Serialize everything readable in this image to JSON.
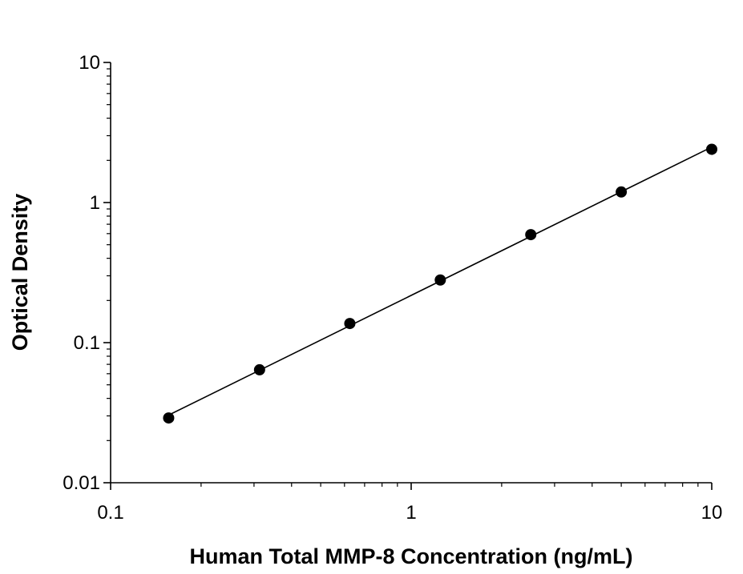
{
  "chart_data": {
    "type": "scatter",
    "title": "",
    "xlabel": "Human Total MMP-8 Concentration (ng/mL)",
    "ylabel": "Optical Density",
    "x_scale": "log",
    "y_scale": "log",
    "xlim": [
      0.1,
      10
    ],
    "ylim": [
      0.01,
      10
    ],
    "x_ticks": [
      "0.1",
      "1",
      "10"
    ],
    "y_ticks": [
      "0.01",
      "0.1",
      "1",
      "10"
    ],
    "grid": false,
    "legend": "none",
    "fit_line": true,
    "series": [
      {
        "x": [
          0.156,
          0.313,
          0.625,
          1.25,
          2.5,
          5,
          10
        ],
        "y": [
          0.029,
          0.064,
          0.137,
          0.28,
          0.59,
          1.19,
          2.4
        ]
      }
    ],
    "colors": {
      "marker": "#000000",
      "line": "#000000",
      "axis": "#000000"
    }
  }
}
